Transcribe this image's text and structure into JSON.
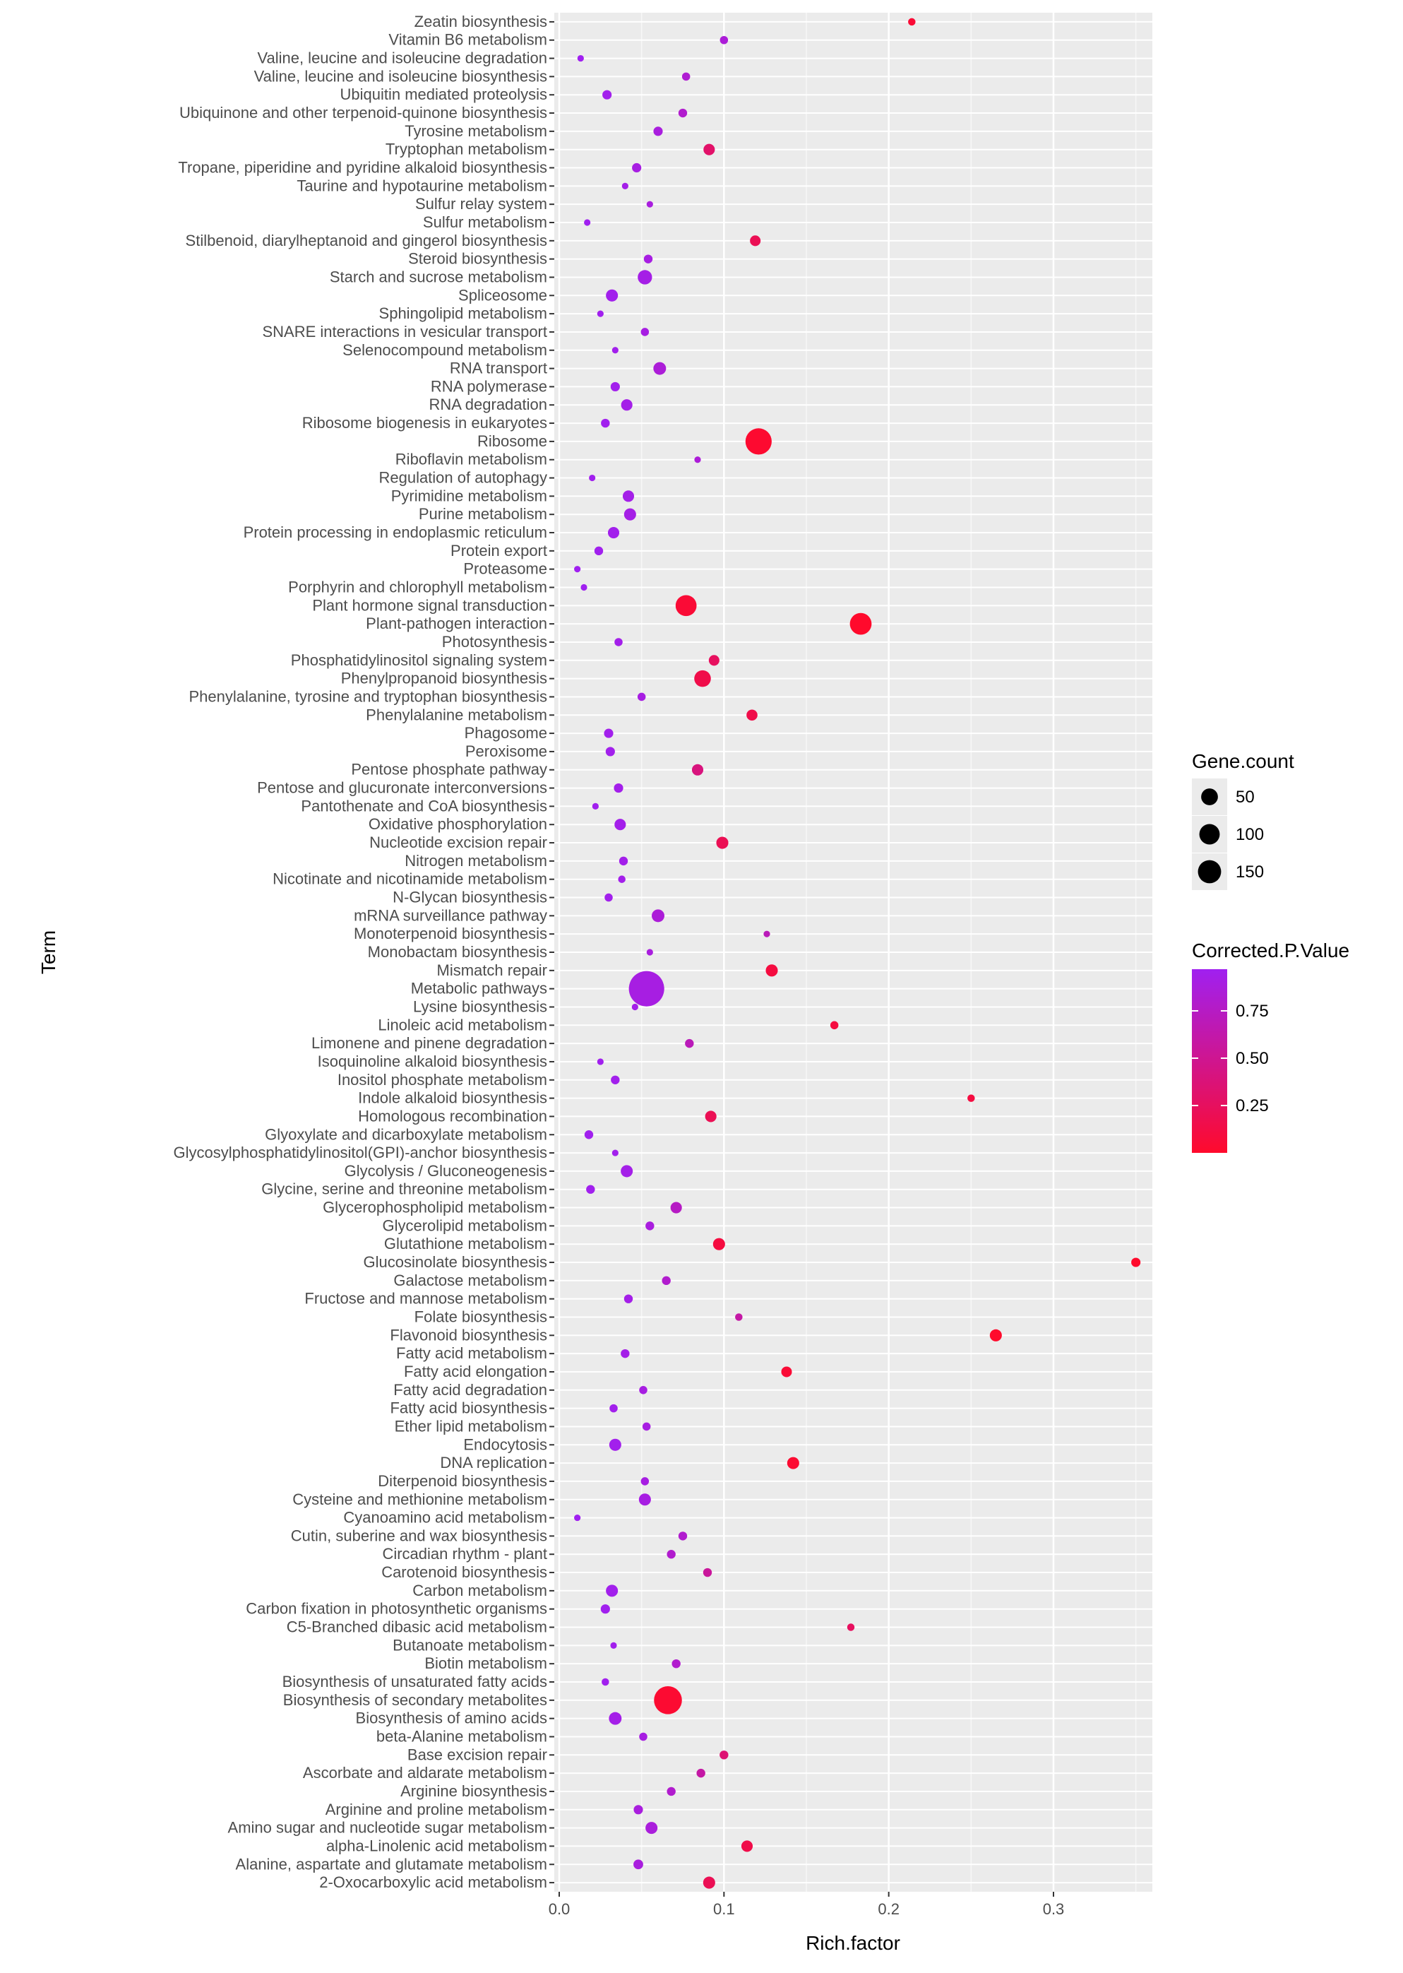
{
  "chart_data": {
    "type": "scatter",
    "xlabel": "Rich.factor",
    "ylabel": "Term",
    "xlim": [
      -0.003,
      0.36
    ],
    "xticks": [
      0.0,
      0.1,
      0.2,
      0.3
    ],
    "xtick_labels": [
      "0.0",
      "0.1",
      "0.2",
      "0.3"
    ],
    "size_legend": {
      "title": "Gene.count",
      "values": [
        50,
        100,
        150
      ],
      "labels": [
        "50",
        "100",
        "150"
      ]
    },
    "color_legend": {
      "title": "Corrected.P.Value",
      "low_color": "#ff0a2c",
      "high_color": "#a020f0",
      "ticks": [
        0.75,
        0.5,
        0.25
      ],
      "tick_labels": [
        "0.75",
        "0.50",
        "0.25"
      ],
      "range": [
        0.0,
        0.97
      ]
    },
    "terms": [
      {
        "term": "Zeatin biosynthesis",
        "x": 0.214,
        "count": 2,
        "p": 0.05
      },
      {
        "term": "Vitamin B6 metabolism",
        "x": 0.1,
        "count": 3,
        "p": 0.85
      },
      {
        "term": "Valine, leucine and isoleucine degradation",
        "x": 0.013,
        "count": 1,
        "p": 0.97
      },
      {
        "term": "Valine, leucine and isoleucine biosynthesis",
        "x": 0.077,
        "count": 3,
        "p": 0.82
      },
      {
        "term": "Ubiquitin mediated proteolysis",
        "x": 0.029,
        "count": 5,
        "p": 0.95
      },
      {
        "term": "Ubiquinone and other terpenoid-quinone biosynthesis",
        "x": 0.075,
        "count": 4,
        "p": 0.8
      },
      {
        "term": "Tyrosine metabolism",
        "x": 0.06,
        "count": 5,
        "p": 0.88
      },
      {
        "term": "Tryptophan metabolism",
        "x": 0.091,
        "count": 10,
        "p": 0.3
      },
      {
        "term": "Tropane, piperidine and pyridine alkaloid biosynthesis",
        "x": 0.047,
        "count": 5,
        "p": 0.9
      },
      {
        "term": "Taurine and hypotaurine metabolism",
        "x": 0.04,
        "count": 1,
        "p": 0.93
      },
      {
        "term": "Sulfur relay system",
        "x": 0.055,
        "count": 1,
        "p": 0.88
      },
      {
        "term": "Sulfur metabolism",
        "x": 0.017,
        "count": 1,
        "p": 0.97
      },
      {
        "term": "Stilbenoid, diarylheptanoid and gingerol biosynthesis",
        "x": 0.119,
        "count": 8,
        "p": 0.2
      },
      {
        "term": "Steroid biosynthesis",
        "x": 0.054,
        "count": 4,
        "p": 0.9
      },
      {
        "term": "Starch and sucrose metabolism",
        "x": 0.052,
        "count": 20,
        "p": 0.92
      },
      {
        "term": "Spliceosome",
        "x": 0.032,
        "count": 12,
        "p": 0.95
      },
      {
        "term": "Sphingolipid metabolism",
        "x": 0.025,
        "count": 1,
        "p": 0.96
      },
      {
        "term": "SNARE interactions in vesicular transport",
        "x": 0.052,
        "count": 3,
        "p": 0.9
      },
      {
        "term": "Selenocompound metabolism",
        "x": 0.034,
        "count": 1,
        "p": 0.95
      },
      {
        "term": "RNA transport",
        "x": 0.061,
        "count": 14,
        "p": 0.85
      },
      {
        "term": "RNA polymerase",
        "x": 0.034,
        "count": 5,
        "p": 0.95
      },
      {
        "term": "RNA degradation",
        "x": 0.041,
        "count": 10,
        "p": 0.93
      },
      {
        "term": "Ribosome biogenesis in eukaryotes",
        "x": 0.028,
        "count": 4,
        "p": 0.96
      },
      {
        "term": "Ribosome",
        "x": 0.121,
        "count": 95,
        "p": 0.02
      },
      {
        "term": "Riboflavin metabolism",
        "x": 0.084,
        "count": 1,
        "p": 0.85
      },
      {
        "term": "Regulation of autophagy",
        "x": 0.02,
        "count": 1,
        "p": 0.96
      },
      {
        "term": "Pyrimidine metabolism",
        "x": 0.042,
        "count": 10,
        "p": 0.93
      },
      {
        "term": "Purine metabolism",
        "x": 0.043,
        "count": 12,
        "p": 0.92
      },
      {
        "term": "Protein processing in endoplasmic reticulum",
        "x": 0.033,
        "count": 10,
        "p": 0.95
      },
      {
        "term": "Protein export",
        "x": 0.024,
        "count": 4,
        "p": 0.96
      },
      {
        "term": "Proteasome",
        "x": 0.011,
        "count": 1,
        "p": 0.97
      },
      {
        "term": "Porphyrin and chlorophyll metabolism",
        "x": 0.015,
        "count": 1,
        "p": 0.97
      },
      {
        "term": "Plant hormone signal transduction",
        "x": 0.077,
        "count": 55,
        "p": 0.05
      },
      {
        "term": "Plant-pathogen interaction",
        "x": 0.183,
        "count": 60,
        "p": 0.0
      },
      {
        "term": "Photosynthesis",
        "x": 0.036,
        "count": 3,
        "p": 0.94
      },
      {
        "term": "Phosphatidylinositol signaling system",
        "x": 0.094,
        "count": 8,
        "p": 0.25
      },
      {
        "term": "Phenylpropanoid biosynthesis",
        "x": 0.087,
        "count": 30,
        "p": 0.15
      },
      {
        "term": "Phenylalanine, tyrosine and tryptophan biosynthesis",
        "x": 0.05,
        "count": 3,
        "p": 0.9
      },
      {
        "term": "Phenylalanine metabolism",
        "x": 0.117,
        "count": 9,
        "p": 0.15
      },
      {
        "term": "Phagosome",
        "x": 0.03,
        "count": 5,
        "p": 0.95
      },
      {
        "term": "Peroxisome",
        "x": 0.031,
        "count": 5,
        "p": 0.95
      },
      {
        "term": "Pentose phosphate pathway",
        "x": 0.084,
        "count": 10,
        "p": 0.4
      },
      {
        "term": "Pentose and glucuronate interconversions",
        "x": 0.036,
        "count": 5,
        "p": 0.94
      },
      {
        "term": "Pantothenate and CoA biosynthesis",
        "x": 0.022,
        "count": 1,
        "p": 0.96
      },
      {
        "term": "Oxidative phosphorylation",
        "x": 0.037,
        "count": 10,
        "p": 0.94
      },
      {
        "term": "Nucleotide excision repair",
        "x": 0.099,
        "count": 12,
        "p": 0.2
      },
      {
        "term": "Nitrogen metabolism",
        "x": 0.039,
        "count": 4,
        "p": 0.94
      },
      {
        "term": "Nicotinate and nicotinamide metabolism",
        "x": 0.038,
        "count": 2,
        "p": 0.94
      },
      {
        "term": "N-Glycan biosynthesis",
        "x": 0.03,
        "count": 3,
        "p": 0.95
      },
      {
        "term": "mRNA surveillance pathway",
        "x": 0.06,
        "count": 14,
        "p": 0.85
      },
      {
        "term": "Monoterpenoid biosynthesis",
        "x": 0.126,
        "count": 1,
        "p": 0.7
      },
      {
        "term": "Monobactam biosynthesis",
        "x": 0.055,
        "count": 1,
        "p": 0.88
      },
      {
        "term": "Mismatch repair",
        "x": 0.129,
        "count": 12,
        "p": 0.1
      },
      {
        "term": "Metabolic pathways",
        "x": 0.053,
        "count": 190,
        "p": 0.9
      },
      {
        "term": "Lysine biosynthesis",
        "x": 0.046,
        "count": 1,
        "p": 0.93
      },
      {
        "term": "Linoleic acid metabolism",
        "x": 0.167,
        "count": 3,
        "p": 0.1
      },
      {
        "term": "Limonene and pinene degradation",
        "x": 0.079,
        "count": 4,
        "p": 0.7
      },
      {
        "term": "Isoquinoline alkaloid biosynthesis",
        "x": 0.025,
        "count": 1,
        "p": 0.96
      },
      {
        "term": "Inositol phosphate metabolism",
        "x": 0.034,
        "count": 4,
        "p": 0.95
      },
      {
        "term": "Indole alkaloid biosynthesis",
        "x": 0.25,
        "count": 2,
        "p": 0.1
      },
      {
        "term": "Homologous recombination",
        "x": 0.092,
        "count": 10,
        "p": 0.2
      },
      {
        "term": "Glyoxylate and dicarboxylate metabolism",
        "x": 0.018,
        "count": 4,
        "p": 0.96
      },
      {
        "term": "Glycosylphosphatidylinositol(GPI)-anchor biosynthesis",
        "x": 0.034,
        "count": 1,
        "p": 0.95
      },
      {
        "term": "Glycolysis / Gluconeogenesis",
        "x": 0.041,
        "count": 12,
        "p": 0.93
      },
      {
        "term": "Glycine, serine and threonine metabolism",
        "x": 0.019,
        "count": 4,
        "p": 0.96
      },
      {
        "term": "Glycerophospholipid metabolism",
        "x": 0.071,
        "count": 10,
        "p": 0.75
      },
      {
        "term": "Glycerolipid metabolism",
        "x": 0.055,
        "count": 4,
        "p": 0.88
      },
      {
        "term": "Glutathione metabolism",
        "x": 0.097,
        "count": 12,
        "p": 0.1
      },
      {
        "term": "Glucosinolate biosynthesis",
        "x": 0.35,
        "count": 5,
        "p": 0.0
      },
      {
        "term": "Galactose metabolism",
        "x": 0.065,
        "count": 4,
        "p": 0.8
      },
      {
        "term": "Fructose and mannose metabolism",
        "x": 0.042,
        "count": 4,
        "p": 0.93
      },
      {
        "term": "Folate biosynthesis",
        "x": 0.109,
        "count": 2,
        "p": 0.6
      },
      {
        "term": "Flavonoid biosynthesis",
        "x": 0.265,
        "count": 12,
        "p": 0.0
      },
      {
        "term": "Fatty acid metabolism",
        "x": 0.04,
        "count": 4,
        "p": 0.93
      },
      {
        "term": "Fatty acid elongation",
        "x": 0.138,
        "count": 8,
        "p": 0.05
      },
      {
        "term": "Fatty acid degradation",
        "x": 0.051,
        "count": 3,
        "p": 0.9
      },
      {
        "term": "Fatty acid biosynthesis",
        "x": 0.033,
        "count": 3,
        "p": 0.95
      },
      {
        "term": "Ether lipid metabolism",
        "x": 0.053,
        "count": 3,
        "p": 0.9
      },
      {
        "term": "Endocytosis",
        "x": 0.034,
        "count": 12,
        "p": 0.95
      },
      {
        "term": "DNA replication",
        "x": 0.142,
        "count": 12,
        "p": 0.03
      },
      {
        "term": "Diterpenoid biosynthesis",
        "x": 0.052,
        "count": 3,
        "p": 0.9
      },
      {
        "term": "Cysteine and methionine metabolism",
        "x": 0.052,
        "count": 12,
        "p": 0.9
      },
      {
        "term": "Cyanoamino acid metabolism",
        "x": 0.011,
        "count": 1,
        "p": 0.97
      },
      {
        "term": "Cutin, suberine and wax biosynthesis",
        "x": 0.075,
        "count": 4,
        "p": 0.8
      },
      {
        "term": "Circadian rhythm - plant",
        "x": 0.068,
        "count": 4,
        "p": 0.8
      },
      {
        "term": "Carotenoid biosynthesis",
        "x": 0.09,
        "count": 4,
        "p": 0.55
      },
      {
        "term": "Carbon metabolism",
        "x": 0.032,
        "count": 12,
        "p": 0.95
      },
      {
        "term": "Carbon fixation in photosynthetic organisms",
        "x": 0.028,
        "count": 5,
        "p": 0.96
      },
      {
        "term": "C5-Branched dibasic acid metabolism",
        "x": 0.177,
        "count": 2,
        "p": 0.25
      },
      {
        "term": "Butanoate metabolism",
        "x": 0.033,
        "count": 1,
        "p": 0.95
      },
      {
        "term": "Biotin metabolism",
        "x": 0.071,
        "count": 4,
        "p": 0.8
      },
      {
        "term": "Biosynthesis of unsaturated fatty acids",
        "x": 0.028,
        "count": 2,
        "p": 0.96
      },
      {
        "term": "Biosynthesis of secondary metabolites",
        "x": 0.066,
        "count": 110,
        "p": 0.03
      },
      {
        "term": "Biosynthesis of amino acids",
        "x": 0.034,
        "count": 14,
        "p": 0.93
      },
      {
        "term": "beta-Alanine metabolism",
        "x": 0.051,
        "count": 3,
        "p": 0.9
      },
      {
        "term": "Base excision repair",
        "x": 0.1,
        "count": 4,
        "p": 0.35
      },
      {
        "term": "Ascorbate and aldarate metabolism",
        "x": 0.086,
        "count": 4,
        "p": 0.6
      },
      {
        "term": "Arginine biosynthesis",
        "x": 0.068,
        "count": 4,
        "p": 0.8
      },
      {
        "term": "Arginine and proline metabolism",
        "x": 0.048,
        "count": 5,
        "p": 0.88
      },
      {
        "term": "Amino sugar and nucleotide sugar metabolism",
        "x": 0.056,
        "count": 12,
        "p": 0.87
      },
      {
        "term": "alpha-Linolenic acid metabolism",
        "x": 0.114,
        "count": 10,
        "p": 0.15
      },
      {
        "term": "Alanine, aspartate and glutamate metabolism",
        "x": 0.048,
        "count": 6,
        "p": 0.88
      },
      {
        "term": "2-Oxocarboxylic acid metabolism",
        "x": 0.091,
        "count": 12,
        "p": 0.2
      }
    ]
  }
}
